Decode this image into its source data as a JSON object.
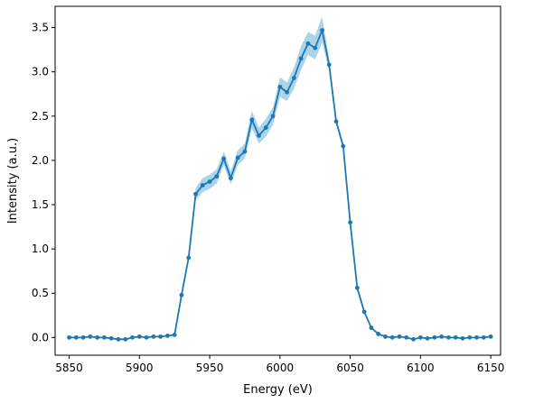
{
  "chart_data": {
    "type": "line",
    "title": "",
    "xlabel": "Energy (eV)",
    "ylabel": "Intensity (a.u.)",
    "xlim": [
      5840,
      6157
    ],
    "ylim": [
      -0.2,
      3.74
    ],
    "xticks": [
      5850,
      5900,
      5950,
      6000,
      6050,
      6100,
      6150
    ],
    "yticks": [
      0.0,
      0.5,
      1.0,
      1.5,
      2.0,
      2.5,
      3.0,
      3.5
    ],
    "xtick_labels": [
      "5850",
      "5900",
      "5950",
      "6000",
      "6050",
      "6100",
      "6150"
    ],
    "ytick_labels": [
      "0.0",
      "0.5",
      "1.0",
      "1.5",
      "2.0",
      "2.5",
      "3.0",
      "3.5"
    ],
    "grid": false,
    "series": [
      {
        "color": "#1f77b4",
        "band_color": "#8fc6e3",
        "marker": "circle",
        "x": [
          5850,
          5855,
          5860,
          5865,
          5870,
          5875,
          5880,
          5885,
          5890,
          5895,
          5900,
          5905,
          5910,
          5915,
          5920,
          5925,
          5930,
          5935,
          5940,
          5945,
          5950,
          5955,
          5960,
          5965,
          5970,
          5975,
          5980,
          5985,
          5990,
          5995,
          6000,
          6005,
          6010,
          6015,
          6020,
          6025,
          6030,
          6035,
          6040,
          6045,
          6050,
          6055,
          6060,
          6065,
          6070,
          6075,
          6080,
          6085,
          6090,
          6095,
          6100,
          6105,
          6110,
          6115,
          6120,
          6125,
          6130,
          6135,
          6140,
          6145,
          6150
        ],
        "y": [
          0.0,
          0.0,
          0.0,
          0.01,
          0.0,
          0.0,
          -0.01,
          -0.02,
          -0.02,
          0.0,
          0.01,
          0.0,
          0.01,
          0.01,
          0.02,
          0.03,
          0.48,
          0.9,
          1.62,
          1.72,
          1.76,
          1.82,
          2.02,
          1.8,
          2.03,
          2.1,
          2.46,
          2.28,
          2.37,
          2.5,
          2.83,
          2.77,
          2.93,
          3.15,
          3.32,
          3.27,
          3.47,
          3.08,
          2.44,
          2.16,
          1.3,
          0.56,
          0.29,
          0.11,
          0.04,
          0.01,
          0.0,
          0.01,
          0.0,
          -0.02,
          0.0,
          -0.01,
          0.0,
          0.01,
          0.0,
          0.0,
          -0.01,
          0.0,
          0.0,
          0.0,
          0.01
        ],
        "lower": [
          0.0,
          0.0,
          0.0,
          0.01,
          0.0,
          0.0,
          -0.01,
          -0.02,
          -0.02,
          0.0,
          0.01,
          0.0,
          0.01,
          0.01,
          0.02,
          0.03,
          0.47,
          0.88,
          1.55,
          1.64,
          1.68,
          1.74,
          1.95,
          1.73,
          1.95,
          2.02,
          2.36,
          2.19,
          2.27,
          2.4,
          2.72,
          2.67,
          2.81,
          3.02,
          3.19,
          3.14,
          3.33,
          3.02,
          2.4,
          2.13,
          1.28,
          0.55,
          0.29,
          0.11,
          0.04,
          0.01,
          0.0,
          0.01,
          0.0,
          -0.02,
          0.0,
          -0.01,
          0.0,
          0.01,
          0.0,
          0.0,
          -0.01,
          0.0,
          0.0,
          0.0,
          0.01
        ],
        "upper": [
          0.0,
          0.0,
          0.0,
          0.01,
          0.0,
          0.0,
          -0.01,
          -0.02,
          -0.02,
          0.0,
          0.01,
          0.0,
          0.01,
          0.01,
          0.02,
          0.03,
          0.49,
          0.92,
          1.69,
          1.8,
          1.84,
          1.9,
          2.1,
          1.88,
          2.11,
          2.19,
          2.56,
          2.37,
          2.47,
          2.6,
          2.94,
          2.88,
          3.05,
          3.29,
          3.45,
          3.41,
          3.62,
          3.15,
          2.49,
          2.2,
          1.32,
          0.57,
          0.3,
          0.11,
          0.04,
          0.01,
          0.0,
          0.01,
          0.0,
          -0.02,
          0.0,
          -0.01,
          0.0,
          0.01,
          0.0,
          0.0,
          -0.01,
          0.0,
          0.0,
          0.0,
          0.01
        ]
      }
    ]
  }
}
